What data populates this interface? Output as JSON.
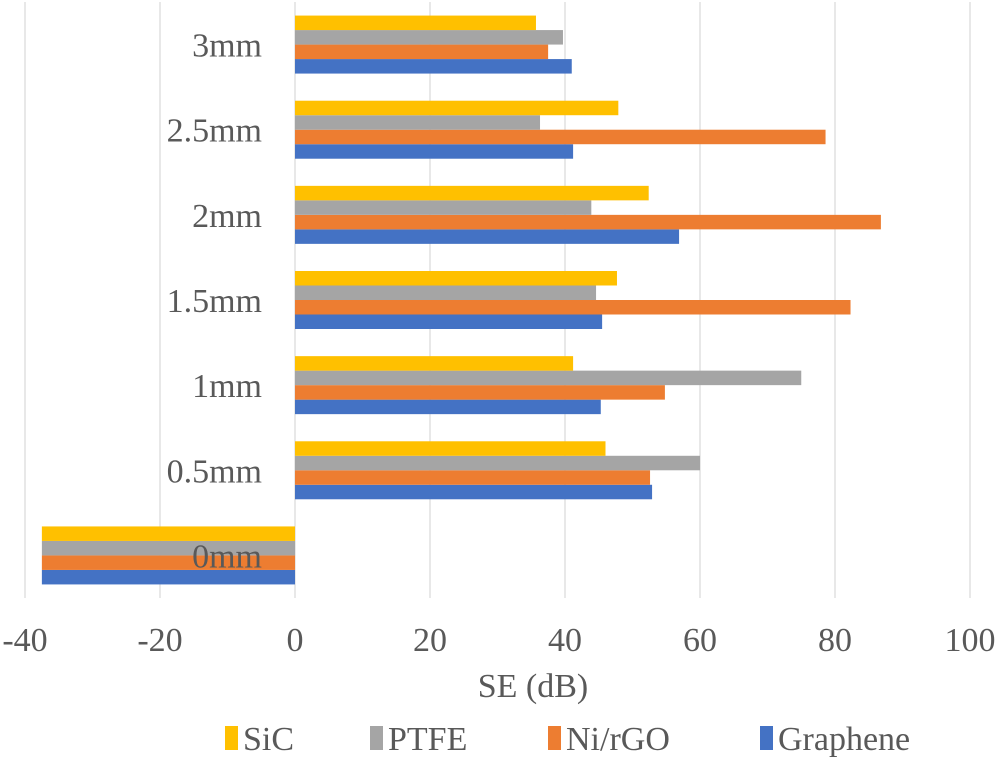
{
  "chart_data": {
    "type": "bar",
    "orientation": "horizontal",
    "title": "",
    "xlabel": "SE (dB)",
    "ylabel": "",
    "xlim": [
      -40,
      100
    ],
    "xticks": [
      -40,
      -20,
      0,
      20,
      40,
      60,
      80,
      100
    ],
    "xtick_labels": [
      "-40",
      "-20",
      "0",
      "20",
      "40",
      "60",
      "80",
      "100"
    ],
    "grid": "vertical",
    "legend_position": "bottom",
    "categories": [
      "0mm",
      "0.5mm",
      "1mm",
      "1.5mm",
      "2mm",
      "2.5mm",
      "3mm"
    ],
    "series": [
      {
        "name": "Graphene",
        "color": "#4472C4",
        "values": [
          -37.5,
          52.9,
          45.3,
          45.5,
          56.9,
          41.2,
          41.0
        ]
      },
      {
        "name": "Ni/rGO",
        "color": "#ED7D31",
        "values": [
          -37.5,
          52.6,
          54.8,
          82.3,
          86.8,
          78.6,
          37.5
        ]
      },
      {
        "name": "PTFE",
        "color": "#A5A5A5",
        "values": [
          -37.5,
          60.0,
          75.0,
          44.6,
          43.9,
          36.3,
          39.7
        ]
      },
      {
        "name": "SiC",
        "color": "#FFC000",
        "values": [
          -37.5,
          46.0,
          41.2,
          47.7,
          52.4,
          47.9,
          35.7
        ]
      }
    ],
    "legend": [
      "SiC",
      "PTFE",
      "Ni/rGO",
      "Graphene"
    ]
  }
}
